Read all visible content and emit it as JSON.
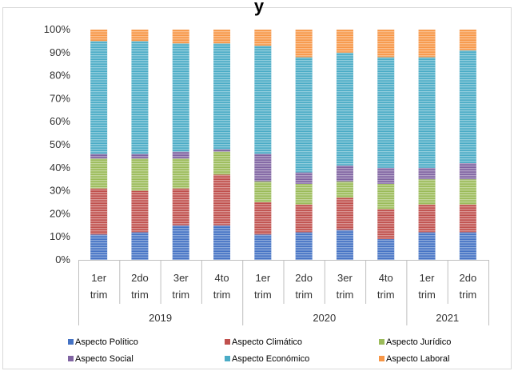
{
  "chart_data": {
    "type": "bar",
    "stacked": "percent",
    "title_fragment": "y",
    "xlabel": "",
    "ylabel": "",
    "ylim": [
      0,
      100
    ],
    "y_ticks": [
      "0%",
      "10%",
      "20%",
      "30%",
      "40%",
      "50%",
      "60%",
      "70%",
      "80%",
      "90%",
      "100%"
    ],
    "grid": false,
    "legend_position": "bottom",
    "categories": [
      {
        "line1": "1er",
        "line2": "trim"
      },
      {
        "line1": "2do",
        "line2": "trim"
      },
      {
        "line1": "3er",
        "line2": "trim"
      },
      {
        "line1": "4to",
        "line2": "trim"
      },
      {
        "line1": "1er",
        "line2": "trim"
      },
      {
        "line1": "2do",
        "line2": "trim"
      },
      {
        "line1": "3er",
        "line2": "trim"
      },
      {
        "line1": "4to",
        "line2": "trim"
      },
      {
        "line1": "1er",
        "line2": "trim"
      },
      {
        "line1": "2do",
        "line2": "trim"
      }
    ],
    "groups": [
      {
        "label": "2019",
        "count": 4
      },
      {
        "label": "2020",
        "count": 4
      },
      {
        "label": "2021",
        "count": 2
      }
    ],
    "series": [
      {
        "name": "Aspecto Político",
        "color": "#4472C4",
        "values": [
          11,
          12,
          15,
          15,
          11,
          12,
          13,
          9,
          12,
          12
        ]
      },
      {
        "name": "Aspecto Climático",
        "color": "#C0504D",
        "values": [
          20,
          18,
          16,
          22,
          14,
          12,
          14,
          13,
          12,
          12
        ]
      },
      {
        "name": "Aspecto Jurídico",
        "color": "#9BBB59",
        "values": [
          13,
          14,
          13,
          10,
          9,
          9,
          7,
          11,
          11,
          11
        ]
      },
      {
        "name": "Aspecto Social",
        "color": "#8064A2",
        "values": [
          2,
          2,
          3,
          1,
          12,
          5,
          7,
          7,
          5,
          7
        ]
      },
      {
        "name": "Aspecto Económico",
        "color": "#4BACC6",
        "values": [
          49,
          49,
          47,
          46,
          47,
          50,
          49,
          48,
          48,
          49
        ]
      },
      {
        "name": "Aspecto Laboral",
        "color": "#F79646",
        "values": [
          5,
          5,
          6,
          6,
          7,
          12,
          10,
          12,
          12,
          9
        ]
      }
    ]
  }
}
